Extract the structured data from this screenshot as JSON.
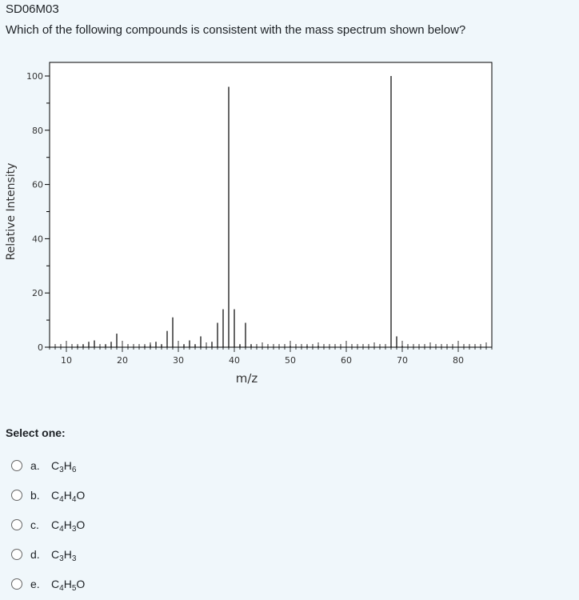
{
  "question": {
    "id": "SD06M03",
    "text": "Which of the following compounds is consistent with the mass spectrum shown below?"
  },
  "chart_data": {
    "type": "bar",
    "xlabel": "m/z",
    "ylabel": "Relative Intensity",
    "xlim": [
      7,
      86
    ],
    "ylim": [
      0,
      100
    ],
    "xticks": [
      10,
      20,
      30,
      40,
      50,
      60,
      70,
      80
    ],
    "yticks": [
      0,
      20,
      40,
      60,
      80,
      100
    ],
    "grid": false,
    "peaks": [
      {
        "x": 12,
        "y": 0.5
      },
      {
        "x": 13,
        "y": 1
      },
      {
        "x": 14,
        "y": 2
      },
      {
        "x": 15,
        "y": 2.5
      },
      {
        "x": 17,
        "y": 1
      },
      {
        "x": 18,
        "y": 2
      },
      {
        "x": 19,
        "y": 5
      },
      {
        "x": 24,
        "y": 0.5
      },
      {
        "x": 25,
        "y": 1
      },
      {
        "x": 26,
        "y": 2
      },
      {
        "x": 27,
        "y": 1
      },
      {
        "x": 28,
        "y": 6
      },
      {
        "x": 29,
        "y": 11
      },
      {
        "x": 31,
        "y": 1
      },
      {
        "x": 32,
        "y": 2.5
      },
      {
        "x": 33,
        "y": 1
      },
      {
        "x": 34,
        "y": 4
      },
      {
        "x": 36,
        "y": 2
      },
      {
        "x": 37,
        "y": 9
      },
      {
        "x": 38,
        "y": 14
      },
      {
        "x": 39,
        "y": 96
      },
      {
        "x": 40,
        "y": 14
      },
      {
        "x": 41,
        "y": 1
      },
      {
        "x": 42,
        "y": 9
      },
      {
        "x": 43,
        "y": 1
      },
      {
        "x": 50,
        "y": 0.5
      },
      {
        "x": 53,
        "y": 0.5
      },
      {
        "x": 55,
        "y": 0.5
      },
      {
        "x": 68,
        "y": 100
      },
      {
        "x": 69,
        "y": 4
      },
      {
        "x": 70,
        "y": 0.5
      }
    ]
  },
  "select": {
    "label": "Select one:",
    "options": [
      {
        "letter": "a.",
        "parts": [
          [
            "C",
            ""
          ],
          [
            "3",
            "sub"
          ],
          [
            "H",
            ""
          ],
          [
            "6",
            "sub"
          ]
        ]
      },
      {
        "letter": "b.",
        "parts": [
          [
            "C",
            ""
          ],
          [
            "4",
            "sub"
          ],
          [
            "H",
            ""
          ],
          [
            "4",
            "sub"
          ],
          [
            "O",
            ""
          ]
        ]
      },
      {
        "letter": "c.",
        "parts": [
          [
            "C",
            ""
          ],
          [
            "4",
            "sub"
          ],
          [
            "H",
            ""
          ],
          [
            "3",
            "sub"
          ],
          [
            "O",
            ""
          ]
        ]
      },
      {
        "letter": "d.",
        "parts": [
          [
            "C",
            ""
          ],
          [
            "3",
            "sub"
          ],
          [
            "H",
            ""
          ],
          [
            "3",
            "sub"
          ]
        ]
      },
      {
        "letter": "e.",
        "parts": [
          [
            "C",
            ""
          ],
          [
            "4",
            "sub"
          ],
          [
            "H",
            ""
          ],
          [
            "5",
            "sub"
          ],
          [
            "O",
            ""
          ]
        ]
      }
    ]
  }
}
